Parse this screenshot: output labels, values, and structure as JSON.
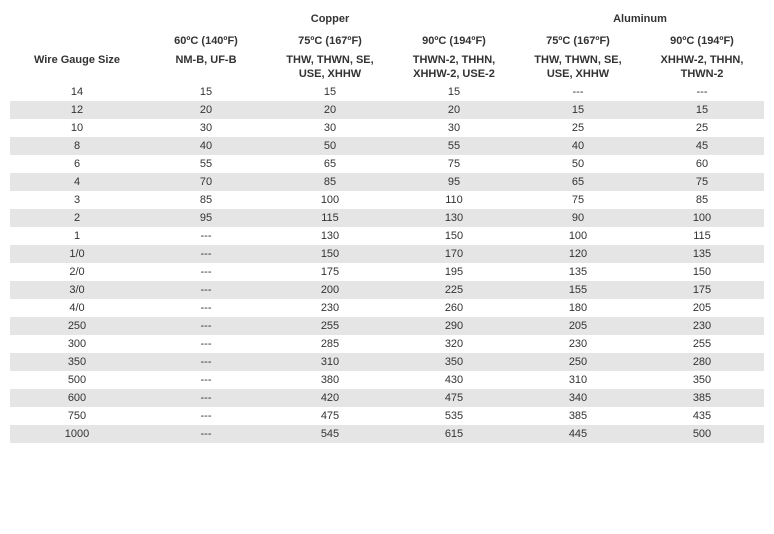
{
  "table": {
    "groups": {
      "copper": "Copper",
      "aluminum": "Aluminum"
    },
    "temps": {
      "c60": "60ºC (140ºF)",
      "c75": "75ºC (167ºF)",
      "c90": "90ºC (194ºF)",
      "a75": "75ºC (167ºF)",
      "a90": "90ºC (194ºF)"
    },
    "types": {
      "wg": "Wire Gauge Size",
      "c60": "NM-B, UF-B",
      "c75": "THW, THWN, SE, USE, XHHW",
      "c90": "THWN-2, THHN, XHHW-2, USE-2",
      "a75": "THW, THWN, SE, USE, XHHW",
      "a90": "XHHW-2, THHN, THWN-2"
    },
    "colors": {
      "background": "#ffffff",
      "stripe": "#e5e5e5",
      "text": "#333333"
    },
    "font_size": 11,
    "rows": [
      {
        "g": "14",
        "c60": "15",
        "c75": "15",
        "c90": "15",
        "a75": "---",
        "a90": "---"
      },
      {
        "g": "12",
        "c60": "20",
        "c75": "20",
        "c90": "20",
        "a75": "15",
        "a90": "15"
      },
      {
        "g": "10",
        "c60": "30",
        "c75": "30",
        "c90": "30",
        "a75": "25",
        "a90": "25"
      },
      {
        "g": "8",
        "c60": "40",
        "c75": "50",
        "c90": "55",
        "a75": "40",
        "a90": "45"
      },
      {
        "g": "6",
        "c60": "55",
        "c75": "65",
        "c90": "75",
        "a75": "50",
        "a90": "60"
      },
      {
        "g": "4",
        "c60": "70",
        "c75": "85",
        "c90": "95",
        "a75": "65",
        "a90": "75"
      },
      {
        "g": "3",
        "c60": "85",
        "c75": "100",
        "c90": "110",
        "a75": "75",
        "a90": "85"
      },
      {
        "g": "2",
        "c60": "95",
        "c75": "115",
        "c90": "130",
        "a75": "90",
        "a90": "100"
      },
      {
        "g": "1",
        "c60": "---",
        "c75": "130",
        "c90": "150",
        "a75": "100",
        "a90": "115"
      },
      {
        "g": "1/0",
        "c60": "---",
        "c75": "150",
        "c90": "170",
        "a75": "120",
        "a90": "135"
      },
      {
        "g": "2/0",
        "c60": "---",
        "c75": "175",
        "c90": "195",
        "a75": "135",
        "a90": "150"
      },
      {
        "g": "3/0",
        "c60": "---",
        "c75": "200",
        "c90": "225",
        "a75": "155",
        "a90": "175"
      },
      {
        "g": "4/0",
        "c60": "---",
        "c75": "230",
        "c90": "260",
        "a75": "180",
        "a90": "205"
      },
      {
        "g": "250",
        "c60": "---",
        "c75": "255",
        "c90": "290",
        "a75": "205",
        "a90": "230"
      },
      {
        "g": "300",
        "c60": "---",
        "c75": "285",
        "c90": "320",
        "a75": "230",
        "a90": "255"
      },
      {
        "g": "350",
        "c60": "---",
        "c75": "310",
        "c90": "350",
        "a75": "250",
        "a90": "280"
      },
      {
        "g": "500",
        "c60": "---",
        "c75": "380",
        "c90": "430",
        "a75": "310",
        "a90": "350"
      },
      {
        "g": "600",
        "c60": "---",
        "c75": "420",
        "c90": "475",
        "a75": "340",
        "a90": "385"
      },
      {
        "g": "750",
        "c60": "---",
        "c75": "475",
        "c90": "535",
        "a75": "385",
        "a90": "435"
      },
      {
        "g": "1000",
        "c60": "---",
        "c75": "545",
        "c90": "615",
        "a75": "445",
        "a90": "500"
      }
    ]
  }
}
